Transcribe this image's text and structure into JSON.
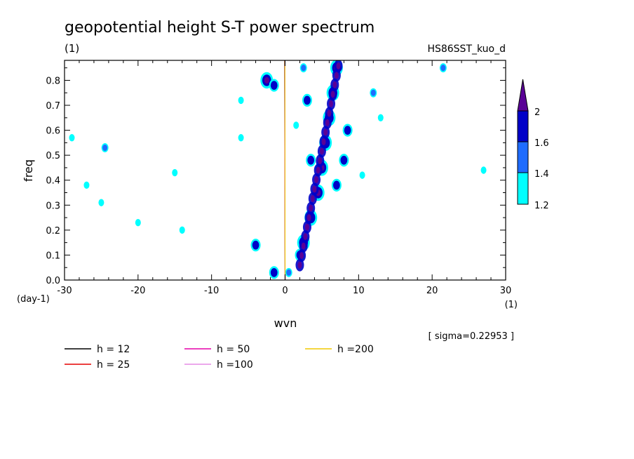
{
  "chart_data": {
    "type": "line",
    "title": "geopotential height S-T power spectrum",
    "subtitle_left": "(1)",
    "subtitle_right": "HS86SST_kuo_d",
    "xlabel": "wvn",
    "x_unit_label": "(1)",
    "ylabel": "freq",
    "y_unit_label": "(day-1)",
    "xlim": [
      -30,
      30
    ],
    "ylim": [
      0,
      0.88
    ],
    "x_ticks": [
      "-30",
      "-20",
      "-10",
      "0",
      "10",
      "20",
      "30"
    ],
    "y_ticks": [
      "0.0",
      "0.1",
      "0.2",
      "0.3",
      "0.4",
      "0.5",
      "0.6",
      "0.7",
      "0.8"
    ],
    "sigma_note": "[ sigma=0.22953 ]",
    "colorbar": {
      "levels": [
        "1.2",
        "1.4",
        "1.6",
        "2"
      ],
      "colors": [
        "#00ffff",
        "#1e6cff",
        "#0000c8",
        "#5a0096"
      ]
    },
    "series": [
      {
        "name": "h = 12",
        "h": 12,
        "color": "#000000"
      },
      {
        "name": "h = 25",
        "h": 25,
        "color": "#e60000"
      },
      {
        "name": "h = 50",
        "h": 50,
        "color": "#e600aa"
      },
      {
        "name": "h =100",
        "h": 100,
        "color": "#e68ce6"
      },
      {
        "name": "h =200",
        "h": 200,
        "color": "#f0c800"
      }
    ],
    "spectral_peaks": [
      {
        "wvn": 4.5,
        "freq": 0.35,
        "level": 2.0
      },
      {
        "wvn": 5.0,
        "freq": 0.45,
        "level": 2.0
      },
      {
        "wvn": 5.5,
        "freq": 0.55,
        "level": 2.0
      },
      {
        "wvn": 6.0,
        "freq": 0.65,
        "level": 2.0
      },
      {
        "wvn": 6.5,
        "freq": 0.75,
        "level": 2.0
      },
      {
        "wvn": 7.0,
        "freq": 0.85,
        "level": 2.0
      },
      {
        "wvn": 3.5,
        "freq": 0.25,
        "level": 2.0
      },
      {
        "wvn": 2.5,
        "freq": 0.15,
        "level": 2.0
      },
      {
        "wvn": 2.0,
        "freq": 0.1,
        "level": 1.6
      },
      {
        "wvn": 7.0,
        "freq": 0.38,
        "level": 1.6
      },
      {
        "wvn": 8.0,
        "freq": 0.48,
        "level": 1.6
      },
      {
        "wvn": 8.5,
        "freq": 0.6,
        "level": 1.6
      },
      {
        "wvn": 3.5,
        "freq": 0.48,
        "level": 1.6
      },
      {
        "wvn": 3.0,
        "freq": 0.72,
        "level": 1.6
      },
      {
        "wvn": -2.5,
        "freq": 0.8,
        "level": 2.0
      },
      {
        "wvn": -1.5,
        "freq": 0.78,
        "level": 1.6
      },
      {
        "wvn": -1.5,
        "freq": 0.03,
        "level": 1.6
      },
      {
        "wvn": 0.5,
        "freq": 0.03,
        "level": 1.4
      },
      {
        "wvn": -4.0,
        "freq": 0.14,
        "level": 1.6
      },
      {
        "wvn": 2.5,
        "freq": 0.85,
        "level": 1.4
      },
      {
        "wvn": 12.0,
        "freq": 0.75,
        "level": 1.4
      },
      {
        "wvn": 10.5,
        "freq": 0.42,
        "level": 1.2
      },
      {
        "wvn": -24.5,
        "freq": 0.53,
        "level": 1.4
      },
      {
        "wvn": -14.0,
        "freq": 0.2,
        "level": 1.2
      },
      {
        "wvn": -25.0,
        "freq": 0.31,
        "level": 1.2
      },
      {
        "wvn": -27.0,
        "freq": 0.38,
        "level": 1.2
      },
      {
        "wvn": -29.0,
        "freq": 0.57,
        "level": 1.2
      },
      {
        "wvn": -20.0,
        "freq": 0.23,
        "level": 1.2
      },
      {
        "wvn": -15.0,
        "freq": 0.43,
        "level": 1.2
      },
      {
        "wvn": -6.0,
        "freq": 0.57,
        "level": 1.2
      },
      {
        "wvn": 1.5,
        "freq": 0.62,
        "level": 1.2
      },
      {
        "wvn": 21.5,
        "freq": 0.85,
        "level": 1.4
      },
      {
        "wvn": 27.0,
        "freq": 0.44,
        "level": 1.2
      },
      {
        "wvn": -6.0,
        "freq": 0.72,
        "level": 1.2
      },
      {
        "wvn": 13.0,
        "freq": 0.65,
        "level": 1.2
      }
    ]
  }
}
